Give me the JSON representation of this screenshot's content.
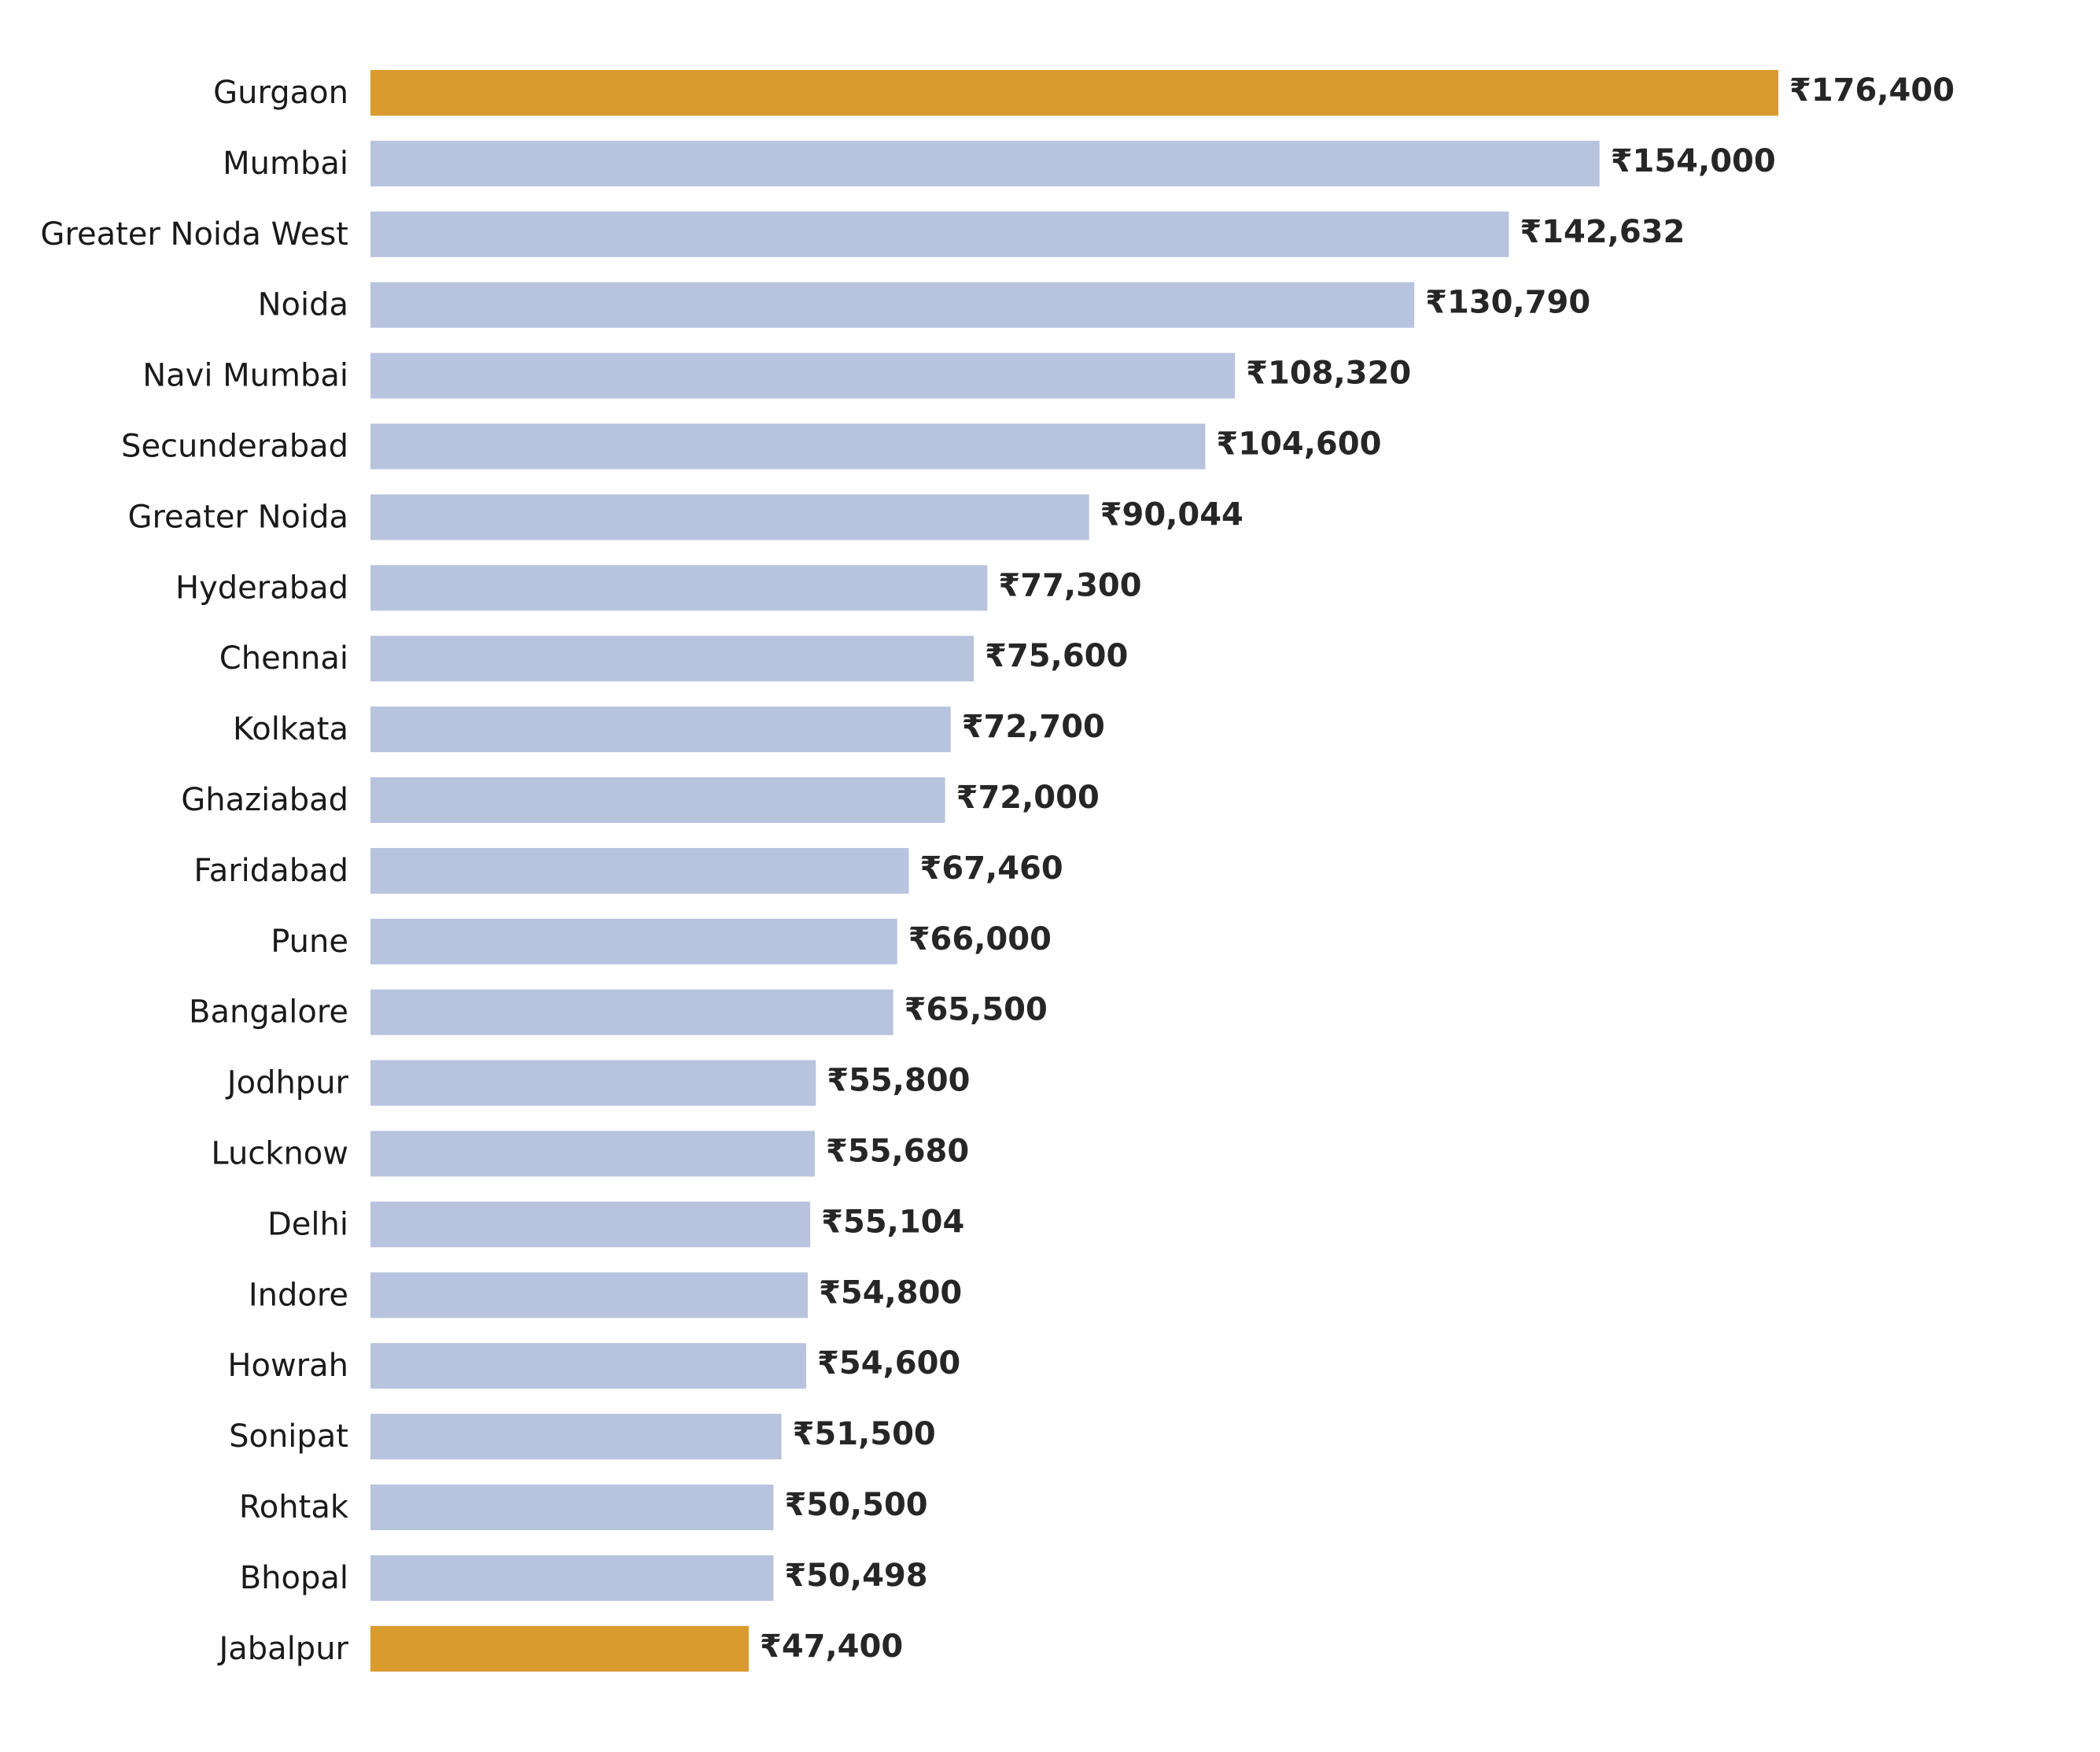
{
  "chart_data": {
    "type": "bar",
    "orientation": "horizontal",
    "title": "",
    "xlabel": "",
    "ylabel": "",
    "grid": false,
    "legend": "none",
    "xlim": [
      0,
      176400
    ],
    "value_prefix": "₹",
    "colors": {
      "default": "#b8c4de",
      "highlight": "#d99a2e"
    },
    "categories": [
      "Gurgaon",
      "Mumbai",
      "Greater Noida West",
      "Noida",
      "Navi Mumbai",
      "Secunderabad",
      "Greater Noida",
      "Hyderabad",
      "Chennai",
      "Kolkata",
      "Ghaziabad",
      "Faridabad",
      "Pune",
      "Bangalore",
      "Jodhpur",
      "Lucknow",
      "Delhi",
      "Indore",
      "Howrah",
      "Sonipat",
      "Rohtak",
      "Bhopal",
      "Jabalpur"
    ],
    "values": [
      176400,
      154000,
      142632,
      130790,
      108320,
      104600,
      90044,
      77300,
      75600,
      72700,
      72000,
      67460,
      66000,
      65500,
      55800,
      55680,
      55104,
      54800,
      54600,
      51500,
      50500,
      50498,
      47400
    ],
    "value_labels": [
      "₹176,400",
      "₹154,000",
      "₹142,632",
      "₹130,790",
      "₹108,320",
      "₹104,600",
      "₹90,044",
      "₹77,300",
      "₹75,600",
      "₹72,700",
      "₹72,000",
      "₹67,460",
      "₹66,000",
      "₹65,500",
      "₹55,800",
      "₹55,680",
      "₹55,104",
      "₹54,800",
      "₹54,600",
      "₹51,500",
      "₹50,500",
      "₹50,498",
      "₹47,400"
    ],
    "highlighted": [
      "Gurgaon",
      "Jabalpur"
    ]
  }
}
